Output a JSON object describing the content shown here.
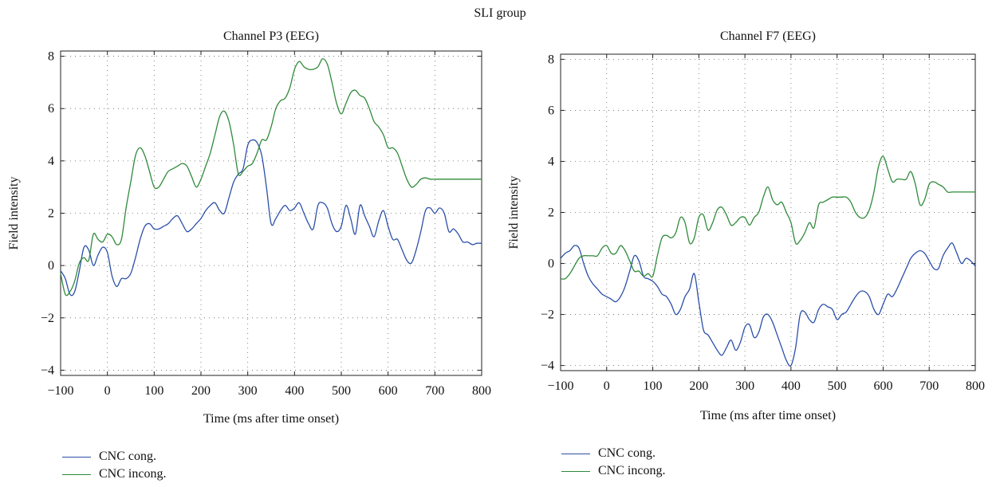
{
  "figure": {
    "title": "SLI group"
  },
  "chart_data": [
    {
      "type": "line",
      "title": "Channel P3 (EEG)",
      "xlabel": "Time (ms after time onset)",
      "ylabel": "Field intensity",
      "xlim": [
        -100,
        800
      ],
      "ylim": [
        -4.2,
        8.2
      ],
      "xticks": [
        -100,
        0,
        100,
        200,
        300,
        400,
        500,
        600,
        700,
        800
      ],
      "yticks": [
        -4,
        -2,
        0,
        2,
        4,
        6,
        8
      ],
      "xtick_labels": [
        "−100",
        "0",
        "100",
        "200",
        "300",
        "400",
        "500",
        "600",
        "700",
        "800"
      ],
      "ytick_labels": [
        "−4",
        "−2",
        "0",
        "2",
        "4",
        "6",
        "8"
      ],
      "grid": true,
      "legend_position": "bottom-left, below plot",
      "series": [
        {
          "name": "CNC cong.",
          "color": "#2a4fa8",
          "x": [
            -100,
            -90,
            -80,
            -70,
            -60,
            -50,
            -40,
            -30,
            -20,
            -10,
            0,
            10,
            20,
            30,
            40,
            50,
            60,
            70,
            80,
            90,
            100,
            110,
            120,
            130,
            140,
            150,
            160,
            170,
            180,
            190,
            200,
            210,
            220,
            230,
            240,
            250,
            260,
            270,
            280,
            290,
            300,
            310,
            320,
            330,
            340,
            350,
            360,
            370,
            380,
            390,
            400,
            410,
            420,
            430,
            440,
            450,
            460,
            470,
            480,
            490,
            500,
            510,
            520,
            530,
            540,
            550,
            560,
            570,
            580,
            590,
            600,
            610,
            620,
            630,
            640,
            650,
            660,
            670,
            680,
            690,
            700,
            710,
            720,
            730,
            740,
            750,
            760,
            770,
            780,
            790,
            800
          ],
          "y": [
            -0.2,
            -0.5,
            -1.1,
            -1.0,
            -0.2,
            0.7,
            0.6,
            0.0,
            0.4,
            0.7,
            0.5,
            -0.4,
            -0.8,
            -0.5,
            -0.5,
            -0.3,
            0.3,
            1.0,
            1.5,
            1.6,
            1.4,
            1.4,
            1.5,
            1.6,
            1.8,
            1.9,
            1.6,
            1.3,
            1.4,
            1.6,
            1.8,
            2.1,
            2.3,
            2.4,
            2.1,
            2.0,
            2.6,
            3.2,
            3.5,
            3.7,
            4.6,
            4.8,
            4.7,
            4.2,
            3.0,
            1.6,
            1.8,
            2.1,
            2.3,
            2.1,
            2.2,
            2.4,
            2.0,
            1.6,
            1.4,
            2.3,
            2.4,
            2.2,
            1.6,
            1.3,
            1.5,
            2.3,
            1.8,
            1.2,
            2.3,
            1.9,
            1.5,
            1.1,
            1.7,
            2.1,
            1.5,
            1.0,
            1.0,
            0.6,
            0.2,
            0.1,
            0.6,
            1.3,
            2.1,
            2.2,
            2.0,
            2.2,
            2.0,
            1.3,
            1.4,
            1.2,
            0.9,
            0.9,
            0.8,
            0.85,
            0.85
          ]
        },
        {
          "name": "CNC incong.",
          "color": "#2f8a3a",
          "x": [
            -100,
            -90,
            -80,
            -70,
            -60,
            -50,
            -40,
            -30,
            -20,
            -10,
            0,
            10,
            20,
            30,
            40,
            50,
            60,
            70,
            80,
            90,
            100,
            110,
            120,
            130,
            140,
            150,
            160,
            170,
            180,
            190,
            200,
            210,
            220,
            230,
            240,
            250,
            260,
            270,
            280,
            290,
            300,
            310,
            320,
            330,
            340,
            350,
            360,
            370,
            380,
            390,
            400,
            410,
            420,
            430,
            440,
            450,
            460,
            470,
            480,
            490,
            500,
            510,
            520,
            530,
            540,
            550,
            560,
            570,
            580,
            590,
            600,
            610,
            620,
            630,
            640,
            650,
            660,
            670,
            680,
            690,
            700,
            710,
            720,
            730,
            740,
            750,
            760,
            770,
            780,
            790,
            800
          ],
          "y": [
            -0.3,
            -1.1,
            -1.0,
            -0.6,
            0.1,
            0.3,
            0.2,
            1.2,
            1.0,
            0.9,
            1.2,
            1.1,
            0.8,
            1.0,
            2.2,
            3.2,
            4.2,
            4.5,
            4.2,
            3.6,
            3.0,
            3.0,
            3.3,
            3.6,
            3.7,
            3.8,
            3.9,
            3.8,
            3.4,
            3.0,
            3.3,
            3.8,
            4.3,
            5.0,
            5.7,
            5.9,
            5.5,
            4.6,
            3.5,
            3.6,
            3.8,
            3.9,
            4.3,
            4.8,
            4.8,
            5.3,
            6.0,
            6.3,
            6.4,
            6.8,
            7.5,
            7.8,
            7.6,
            7.5,
            7.5,
            7.6,
            7.9,
            7.7,
            7.0,
            6.2,
            5.8,
            6.2,
            6.6,
            6.7,
            6.5,
            6.4,
            6.0,
            5.5,
            5.3,
            5.0,
            4.5,
            4.5,
            4.3,
            3.8,
            3.3,
            3.0,
            3.1,
            3.3,
            3.35,
            3.3,
            3.3,
            3.3,
            3.3,
            3.3,
            3.3,
            3.3,
            3.3,
            3.3,
            3.3,
            3.3,
            3.3
          ]
        }
      ]
    },
    {
      "type": "line",
      "title": "Channel F7 (EEG)",
      "xlabel": "Time (ms after time onset)",
      "ylabel": "Field intensity",
      "xlim": [
        -100,
        800
      ],
      "ylim": [
        -4.2,
        8.2
      ],
      "xticks": [
        -100,
        0,
        100,
        200,
        300,
        400,
        500,
        600,
        700,
        800
      ],
      "yticks": [
        -4,
        -2,
        0,
        2,
        4,
        6,
        8
      ],
      "xtick_labels": [
        "−100",
        "0",
        "100",
        "200",
        "300",
        "400",
        "500",
        "600",
        "700",
        "800"
      ],
      "ytick_labels": [
        "−4",
        "−2",
        "0",
        "2",
        "4",
        "6",
        "8"
      ],
      "grid": true,
      "legend_position": "bottom-left, below plot",
      "series": [
        {
          "name": "CNC cong.",
          "color": "#2a4fa8",
          "x": [
            -100,
            -90,
            -80,
            -70,
            -60,
            -50,
            -40,
            -30,
            -20,
            -10,
            0,
            10,
            20,
            30,
            40,
            50,
            60,
            70,
            80,
            90,
            100,
            110,
            120,
            130,
            140,
            150,
            160,
            170,
            180,
            190,
            200,
            210,
            220,
            230,
            240,
            250,
            260,
            270,
            280,
            290,
            300,
            310,
            320,
            330,
            340,
            350,
            360,
            370,
            380,
            390,
            400,
            410,
            420,
            430,
            440,
            450,
            460,
            470,
            480,
            490,
            500,
            510,
            520,
            530,
            540,
            550,
            560,
            570,
            580,
            590,
            600,
            610,
            620,
            630,
            640,
            650,
            660,
            670,
            680,
            690,
            700,
            710,
            720,
            730,
            740,
            750,
            760,
            770,
            780,
            790,
            800
          ],
          "y": [
            0.2,
            0.4,
            0.5,
            0.7,
            0.6,
            0.0,
            -0.5,
            -0.8,
            -1.0,
            -1.2,
            -1.3,
            -1.4,
            -1.5,
            -1.3,
            -0.9,
            -0.3,
            0.3,
            0.1,
            -0.5,
            -0.6,
            -0.7,
            -0.9,
            -1.2,
            -1.3,
            -1.6,
            -2.0,
            -1.8,
            -1.3,
            -1.0,
            -0.4,
            -1.5,
            -2.6,
            -2.8,
            -3.1,
            -3.4,
            -3.6,
            -3.3,
            -3.0,
            -3.4,
            -3.1,
            -2.5,
            -2.4,
            -2.9,
            -2.7,
            -2.1,
            -2.0,
            -2.3,
            -2.8,
            -3.3,
            -3.8,
            -4.0,
            -3.3,
            -2.0,
            -1.9,
            -2.2,
            -2.3,
            -1.8,
            -1.6,
            -1.7,
            -1.8,
            -2.2,
            -2.0,
            -1.9,
            -1.6,
            -1.3,
            -1.1,
            -1.1,
            -1.3,
            -1.8,
            -2.0,
            -1.6,
            -1.2,
            -1.3,
            -1.0,
            -0.6,
            -0.2,
            0.2,
            0.4,
            0.5,
            0.4,
            0.1,
            -0.2,
            -0.2,
            0.3,
            0.6,
            0.8,
            0.4,
            0.0,
            0.2,
            0.1,
            -0.1
          ]
        },
        {
          "name": "CNC incong.",
          "color": "#2f8a3a",
          "x": [
            -100,
            -90,
            -80,
            -70,
            -60,
            -50,
            -40,
            -30,
            -20,
            -10,
            0,
            10,
            20,
            30,
            40,
            50,
            60,
            70,
            80,
            90,
            100,
            110,
            120,
            130,
            140,
            150,
            160,
            170,
            180,
            190,
            200,
            210,
            220,
            230,
            240,
            250,
            260,
            270,
            280,
            290,
            300,
            310,
            320,
            330,
            340,
            350,
            360,
            370,
            380,
            390,
            400,
            410,
            420,
            430,
            440,
            450,
            460,
            470,
            480,
            490,
            500,
            510,
            520,
            530,
            540,
            550,
            560,
            570,
            580,
            590,
            600,
            610,
            620,
            630,
            640,
            650,
            660,
            670,
            680,
            690,
            700,
            710,
            720,
            730,
            740,
            750,
            760,
            770,
            780,
            790,
            800
          ],
          "y": [
            -0.6,
            -0.6,
            -0.4,
            -0.1,
            0.2,
            0.3,
            0.3,
            0.3,
            0.3,
            0.6,
            0.7,
            0.4,
            0.4,
            0.7,
            0.5,
            0.1,
            -0.3,
            -0.3,
            -0.5,
            -0.4,
            -0.5,
            0.3,
            1.0,
            1.1,
            1.0,
            1.2,
            1.8,
            1.6,
            0.8,
            1.0,
            1.8,
            1.9,
            1.3,
            1.6,
            2.1,
            2.2,
            1.9,
            1.5,
            1.6,
            1.8,
            1.8,
            1.5,
            1.8,
            2.0,
            2.6,
            3.0,
            2.5,
            2.3,
            2.4,
            2.0,
            1.6,
            0.8,
            0.9,
            1.2,
            1.6,
            1.4,
            2.3,
            2.4,
            2.5,
            2.6,
            2.6,
            2.6,
            2.6,
            2.4,
            2.0,
            1.8,
            1.8,
            2.1,
            2.8,
            3.8,
            4.2,
            3.7,
            3.2,
            3.3,
            3.3,
            3.3,
            3.6,
            3.1,
            2.3,
            2.5,
            3.1,
            3.2,
            3.1,
            3.0,
            2.8,
            2.8,
            2.8,
            2.8,
            2.8,
            2.8,
            2.8
          ]
        }
      ]
    }
  ]
}
